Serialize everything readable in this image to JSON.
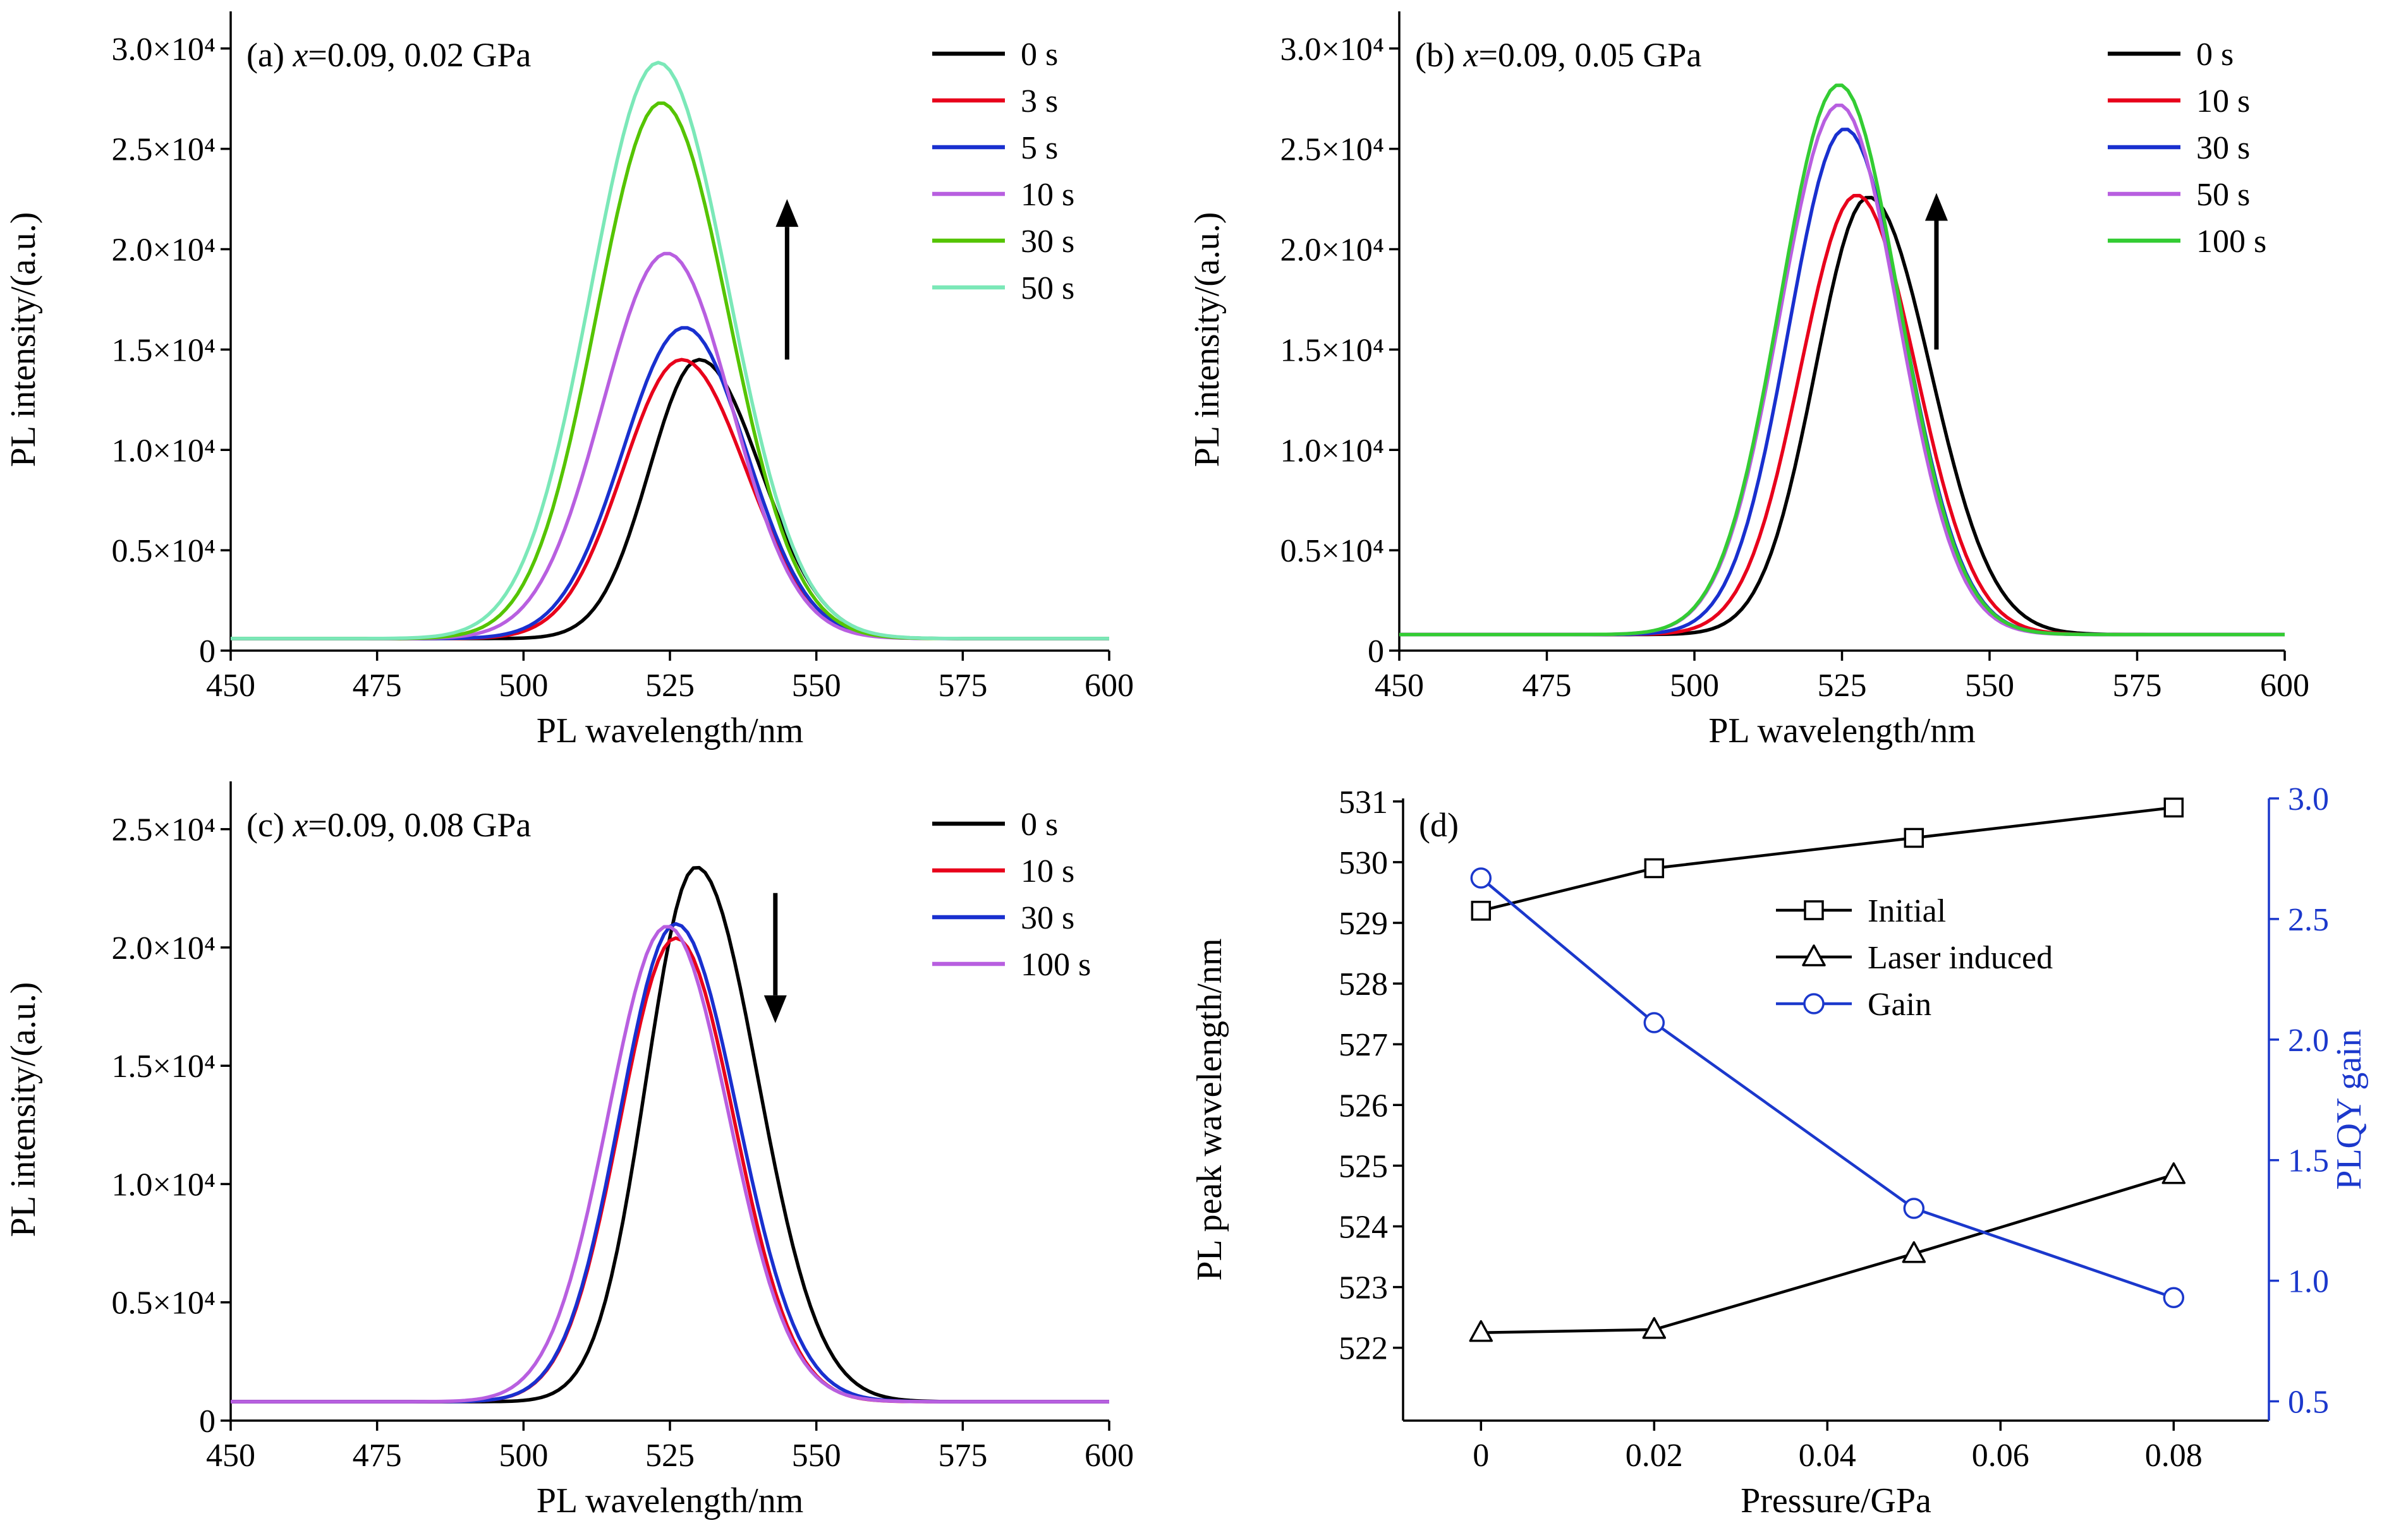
{
  "figure": {
    "background": "#ffffff",
    "accent_blue": "#1b38cc",
    "text_color": "#000000"
  },
  "chart_data": [
    {
      "id": "a",
      "type": "line",
      "title_tag": "(a)",
      "title_var": "x",
      "title_rest": "=0.09, 0.02 GPa",
      "xlabel": "PL wavelength/nm",
      "ylabel": "PL intensity/(a.u.)",
      "xlim": [
        450,
        600
      ],
      "xticks": [
        450,
        475,
        500,
        525,
        550,
        575,
        600
      ],
      "ylim": [
        0,
        31000
      ],
      "yticks": [
        {
          "value": 0,
          "label": "0"
        },
        {
          "value": 5000,
          "label": "0.5×10⁴"
        },
        {
          "value": 10000,
          "label": "1.0×10⁴"
        },
        {
          "value": 15000,
          "label": "1.5×10⁴"
        },
        {
          "value": 20000,
          "label": "2.0×10⁴"
        },
        {
          "value": 25000,
          "label": "2.5×10⁴"
        },
        {
          "value": 30000,
          "label": "3.0×10⁴"
        }
      ],
      "arrow": {
        "direction": "up",
        "x_nm": 545,
        "y_from": 14500,
        "y_to": 22500
      },
      "series": [
        {
          "label": "0 s",
          "color": "#000000",
          "peak_nm": 530,
          "peak_intensity": 14500,
          "sigma_left_nm": 8.5,
          "sigma_right_nm": 10.5,
          "baseline": 600
        },
        {
          "label": "3 s",
          "color": "#e8001b",
          "peak_nm": 527,
          "peak_intensity": 14500,
          "sigma_left_nm": 10,
          "sigma_right_nm": 11,
          "baseline": 600
        },
        {
          "label": "5 s",
          "color": "#1930cf",
          "peak_nm": 527.5,
          "peak_intensity": 16100,
          "sigma_left_nm": 10.5,
          "sigma_right_nm": 10.5,
          "baseline": 600
        },
        {
          "label": "10 s",
          "color": "#b85fe0",
          "peak_nm": 524.5,
          "peak_intensity": 19800,
          "sigma_left_nm": 11,
          "sigma_right_nm": 11,
          "baseline": 600
        },
        {
          "label": "30 s",
          "color": "#55c400",
          "peak_nm": 523.5,
          "peak_intensity": 27300,
          "sigma_left_nm": 11,
          "sigma_right_nm": 11.5,
          "baseline": 600
        },
        {
          "label": "50 s",
          "color": "#7be8b8",
          "peak_nm": 523,
          "peak_intensity": 29300,
          "sigma_left_nm": 11.5,
          "sigma_right_nm": 12,
          "baseline": 600
        }
      ]
    },
    {
      "id": "b",
      "type": "line",
      "title_tag": "(b)",
      "title_var": "x",
      "title_rest": "=0.09, 0.05 GPa",
      "xlabel": "PL wavelength/nm",
      "ylabel": "PL intensity/(a.u.)",
      "xlim": [
        450,
        600
      ],
      "xticks": [
        450,
        475,
        500,
        525,
        550,
        575,
        600
      ],
      "ylim": [
        0,
        31000
      ],
      "yticks": [
        {
          "value": 0,
          "label": "0"
        },
        {
          "value": 5000,
          "label": "0.5×10⁴"
        },
        {
          "value": 10000,
          "label": "1.0×10⁴"
        },
        {
          "value": 15000,
          "label": "1.5×10⁴"
        },
        {
          "value": 20000,
          "label": "2.0×10⁴"
        },
        {
          "value": 25000,
          "label": "2.5×10⁴"
        },
        {
          "value": 30000,
          "label": "3.0×10⁴"
        }
      ],
      "arrow": {
        "direction": "up",
        "x_nm": 541,
        "y_from": 15000,
        "y_to": 22800
      },
      "series": [
        {
          "label": "0 s",
          "color": "#000000",
          "peak_nm": 529.5,
          "peak_intensity": 22600,
          "sigma_left_nm": 9,
          "sigma_right_nm": 10.5,
          "baseline": 800
        },
        {
          "label": "10 s",
          "color": "#e8001b",
          "peak_nm": 527.5,
          "peak_intensity": 22700,
          "sigma_left_nm": 9.5,
          "sigma_right_nm": 10,
          "baseline": 800
        },
        {
          "label": "30 s",
          "color": "#1930cf",
          "peak_nm": 525.5,
          "peak_intensity": 26000,
          "sigma_left_nm": 9.5,
          "sigma_right_nm": 10,
          "baseline": 800
        },
        {
          "label": "50 s",
          "color": "#b85fe0",
          "peak_nm": 524.5,
          "peak_intensity": 27200,
          "sigma_left_nm": 10,
          "sigma_right_nm": 10,
          "baseline": 800
        },
        {
          "label": "100 s",
          "color": "#33cc33",
          "peak_nm": 524.5,
          "peak_intensity": 28200,
          "sigma_left_nm": 10,
          "sigma_right_nm": 10.2,
          "baseline": 800
        }
      ]
    },
    {
      "id": "c",
      "type": "line",
      "title_tag": "(c)",
      "title_var": "x",
      "title_rest": "=0.09, 0.08 GPa",
      "xlabel": "PL wavelength/nm",
      "ylabel": "PL intensity/(a.u.)",
      "xlim": [
        450,
        600
      ],
      "xticks": [
        450,
        475,
        500,
        525,
        550,
        575,
        600
      ],
      "ylim": [
        0,
        26300
      ],
      "yticks": [
        {
          "value": 0,
          "label": "0"
        },
        {
          "value": 5000,
          "label": "0.5×10⁴"
        },
        {
          "value": 10000,
          "label": "1.0×10⁴"
        },
        {
          "value": 15000,
          "label": "1.5×10⁴"
        },
        {
          "value": 20000,
          "label": "2.0×10⁴"
        },
        {
          "value": 25000,
          "label": "2.5×10⁴"
        }
      ],
      "arrow": {
        "direction": "down",
        "x_nm": 543,
        "y_from": 22300,
        "y_to": 16800
      },
      "series": [
        {
          "label": "0 s",
          "color": "#000000",
          "peak_nm": 529.5,
          "peak_intensity": 23400,
          "sigma_left_nm": 8.5,
          "sigma_right_nm": 10.5,
          "baseline": 800
        },
        {
          "label": "10 s",
          "color": "#e8001b",
          "peak_nm": 526,
          "peak_intensity": 20400,
          "sigma_left_nm": 9.5,
          "sigma_right_nm": 10,
          "baseline": 800
        },
        {
          "label": "30 s",
          "color": "#1930cf",
          "peak_nm": 526,
          "peak_intensity": 21000,
          "sigma_left_nm": 9.5,
          "sigma_right_nm": 10.5,
          "baseline": 800
        },
        {
          "label": "100 s",
          "color": "#b85fe0",
          "peak_nm": 524.5,
          "peak_intensity": 20900,
          "sigma_left_nm": 10,
          "sigma_right_nm": 10.5,
          "baseline": 800
        }
      ]
    },
    {
      "id": "d",
      "type": "scatter",
      "title_tag": "(d)",
      "title_var": "",
      "title_rest": "",
      "xlabel": "Pressure/GPa",
      "ylabel_left": "PL peak wavelength/nm",
      "ylabel_right": "PLQY gain",
      "xlim": [
        -0.009,
        0.091
      ],
      "xticks": [
        {
          "value": 0,
          "label": "0"
        },
        {
          "value": 0.02,
          "label": "0.02"
        },
        {
          "value": 0.04,
          "label": "0.04"
        },
        {
          "value": 0.06,
          "label": "0.06"
        },
        {
          "value": 0.08,
          "label": "0.08"
        }
      ],
      "ylim_left": [
        520.8,
        531.05
      ],
      "yticks_left": [
        522,
        523,
        524,
        525,
        526,
        527,
        528,
        529,
        530,
        531
      ],
      "ylim_right": [
        0.42,
        3.0
      ],
      "yticks_right": [
        0.5,
        1.0,
        1.5,
        2.0,
        2.5,
        3.0
      ],
      "series": [
        {
          "label": "Initial",
          "marker": "square",
          "color": "#000000",
          "axis": "left",
          "x": [
            0,
            0.02,
            0.05,
            0.08
          ],
          "y": [
            529.2,
            529.9,
            530.4,
            530.9
          ]
        },
        {
          "label": "Laser induced",
          "marker": "triangle",
          "color": "#000000",
          "axis": "left",
          "x": [
            0,
            0.02,
            0.05,
            0.08
          ],
          "y": [
            522.25,
            522.3,
            523.55,
            524.85
          ]
        },
        {
          "label": "Gain",
          "marker": "circle",
          "color": "#1b38cc",
          "axis": "right",
          "x": [
            0,
            0.02,
            0.05,
            0.08
          ],
          "y": [
            2.67,
            2.07,
            1.3,
            0.93
          ]
        }
      ]
    }
  ]
}
